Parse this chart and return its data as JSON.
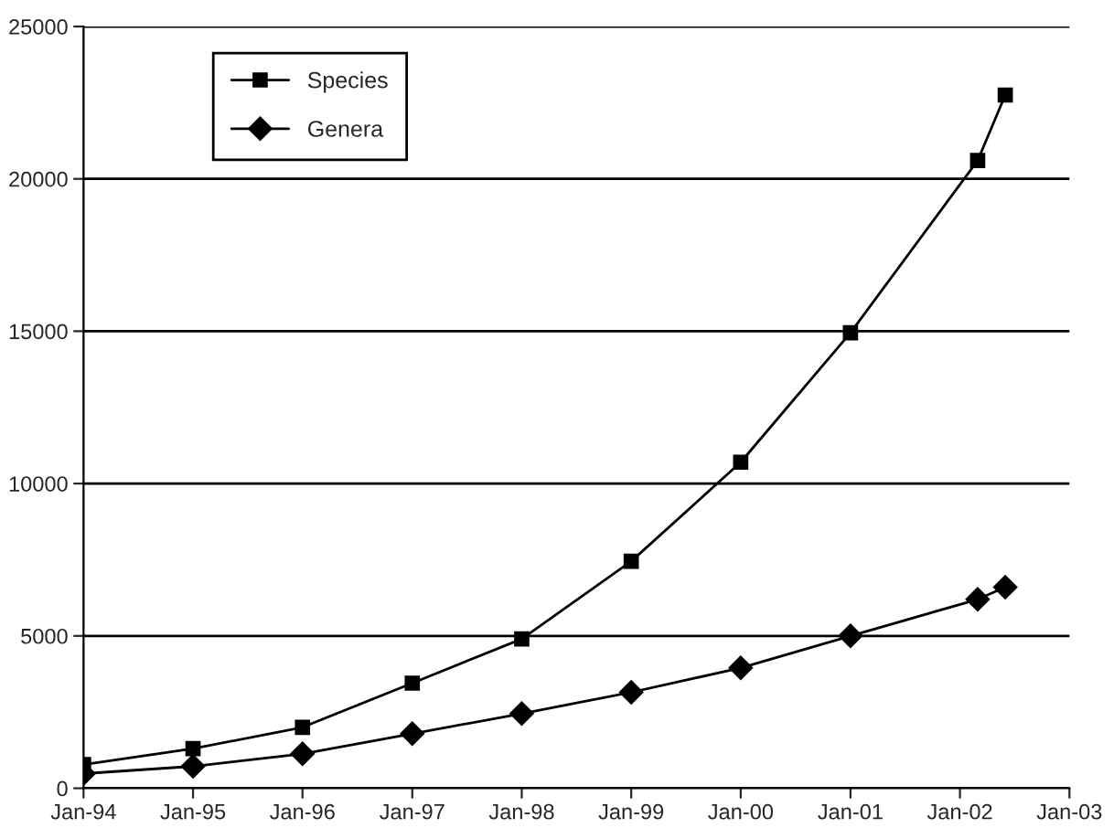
{
  "chart_data": {
    "type": "line",
    "x": [
      "1994-01",
      "1995-01",
      "1996-01",
      "1997-01",
      "1998-01",
      "1999-01",
      "2000-01",
      "2001-01",
      "2002-03",
      "2002-06"
    ],
    "series": [
      {
        "name": "Species",
        "color": "#000000",
        "marker": "square",
        "values": [
          780,
          1300,
          2000,
          3450,
          4900,
          7450,
          10700,
          14950,
          20600,
          22750
        ]
      },
      {
        "name": "Genera",
        "color": "#000000",
        "marker": "diamond",
        "values": [
          480,
          720,
          1130,
          1790,
          2450,
          3150,
          3950,
          5000,
          6200,
          6600
        ]
      }
    ],
    "xlim": [
      "1994-01",
      "2003-01"
    ],
    "xticks": [
      {
        "value": "1994-01",
        "label": "Jan-94"
      },
      {
        "value": "1995-01",
        "label": "Jan-95"
      },
      {
        "value": "1996-01",
        "label": "Jan-96"
      },
      {
        "value": "1997-01",
        "label": "Jan-97"
      },
      {
        "value": "1998-01",
        "label": "Jan-98"
      },
      {
        "value": "1999-01",
        "label": "Jan-99"
      },
      {
        "value": "2000-01",
        "label": "Jan-00"
      },
      {
        "value": "2001-01",
        "label": "Jan-01"
      },
      {
        "value": "2002-01",
        "label": "Jan-02"
      },
      {
        "value": "2003-01",
        "label": "Jan-03"
      }
    ],
    "ylim": [
      0,
      25000
    ],
    "yticks": [
      0,
      5000,
      10000,
      15000,
      20000,
      25000
    ],
    "grid": "y",
    "legend": "top left",
    "line_style": "solid"
  }
}
